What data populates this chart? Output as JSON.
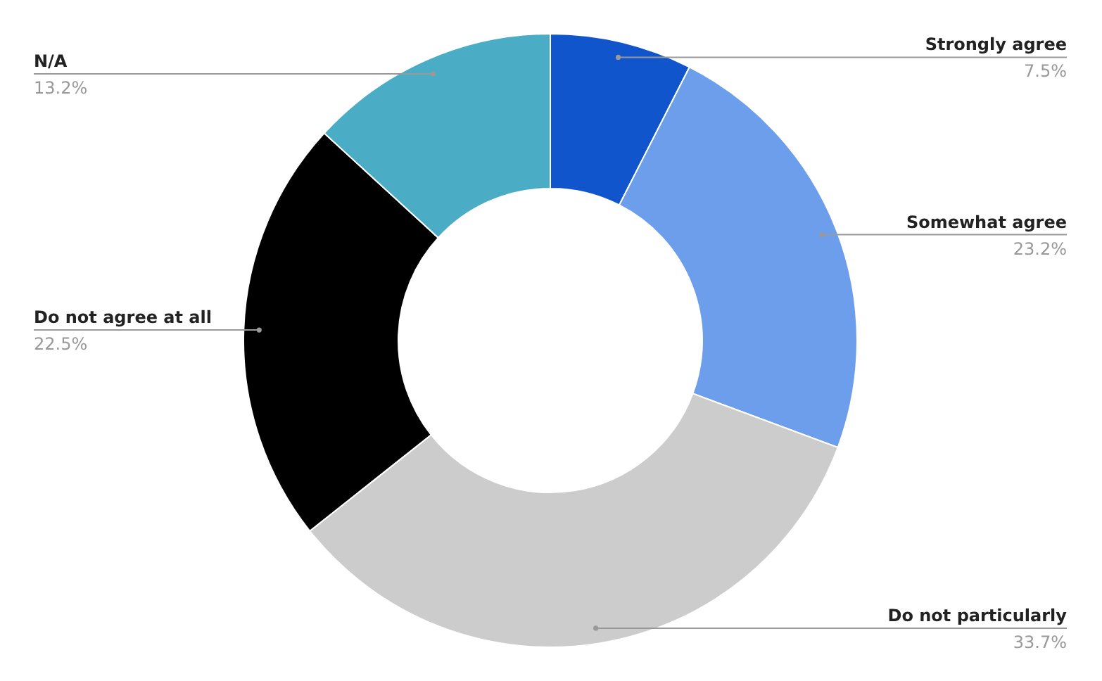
{
  "chart_data": {
    "type": "donut",
    "categories": [
      "Strongly agree",
      "Somewhat agree",
      "Do not particularly",
      "Do not agree at all",
      "N/A"
    ],
    "values": [
      7.5,
      23.2,
      33.7,
      22.5,
      13.2
    ],
    "colors": [
      "#1155cc",
      "#6d9eeb",
      "#cccccc",
      "#000000",
      "#4bacc6"
    ],
    "value_labels": [
      "7.5%",
      "23.2%",
      "33.7%",
      "22.5%",
      "13.2%"
    ],
    "legend": false
  }
}
